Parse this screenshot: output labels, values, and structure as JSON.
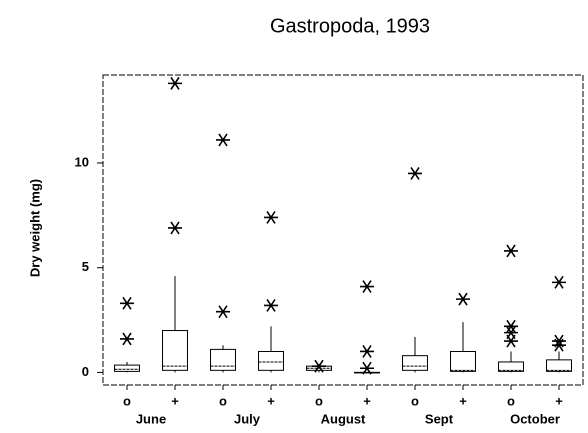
{
  "chart_data": {
    "type": "box",
    "title": "Gastropoda, 1993",
    "ylabel": "Dry weight (mg)",
    "categories": [
      "o",
      "+",
      "o",
      "+",
      "o",
      "+",
      "o",
      "+",
      "o",
      "+"
    ],
    "groups": [
      "June",
      "July",
      "August",
      "Sept",
      "October"
    ],
    "boxes": [
      {
        "min": 0,
        "q1": 0.05,
        "median": 0.15,
        "q3": 0.35,
        "max": 0.5,
        "outliers": [
          1.6,
          3.3
        ]
      },
      {
        "min": 0,
        "q1": 0.1,
        "median": 0.3,
        "q3": 2.0,
        "max": 4.6,
        "outliers": [
          6.9,
          13.8
        ]
      },
      {
        "min": 0,
        "q1": 0.1,
        "median": 0.3,
        "q3": 1.1,
        "max": 1.3,
        "outliers": [
          2.9,
          11.1
        ]
      },
      {
        "min": 0,
        "q1": 0.1,
        "median": 0.5,
        "q3": 1.0,
        "max": 2.2,
        "outliers": [
          3.2,
          7.4
        ]
      },
      {
        "min": 0,
        "q1": 0.1,
        "median": 0.2,
        "q3": 0.3,
        "max": 0.4,
        "outliers": [
          0.3
        ]
      },
      {
        "min": 0,
        "q1": 0,
        "median": 0,
        "q3": 0,
        "max": 0,
        "outliers": [
          0.2,
          1.0,
          4.1
        ]
      },
      {
        "min": 0,
        "q1": 0.1,
        "median": 0.3,
        "q3": 0.8,
        "max": 1.7,
        "outliers": [
          9.5
        ]
      },
      {
        "min": 0,
        "q1": 0.05,
        "median": 0.1,
        "q3": 1.0,
        "max": 2.4,
        "outliers": [
          3.5
        ]
      },
      {
        "min": 0,
        "q1": 0.05,
        "median": 0.1,
        "q3": 0.5,
        "max": 1.0,
        "outliers": [
          1.5,
          1.9,
          2.2,
          5.8
        ]
      },
      {
        "min": 0,
        "q1": 0.05,
        "median": 0.1,
        "q3": 0.6,
        "max": 1.0,
        "outliers": [
          1.3,
          1.5,
          4.3
        ]
      }
    ],
    "ylim": [
      -0.6,
      14.2
    ],
    "yticks": [
      0,
      5,
      10
    ],
    "color": "#000000"
  }
}
